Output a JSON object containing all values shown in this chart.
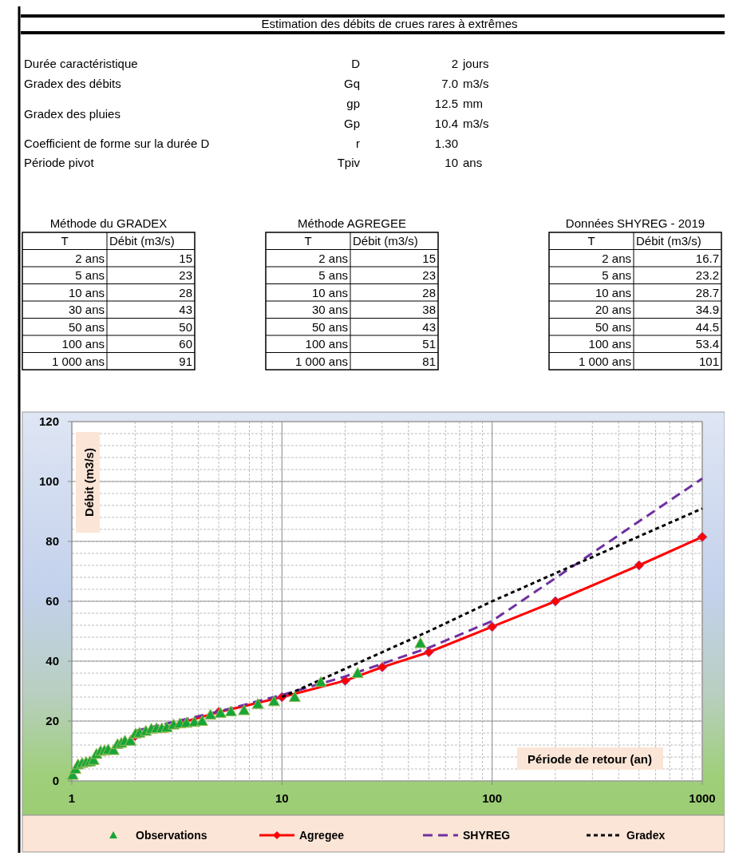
{
  "chart_data": [
    {
      "type": "other",
      "title": "Estimation des débits de crues rares à extrêmes",
      "annotations": [
        "Durée caractéristique",
        "Gradex des débits",
        "Gradex des pluies",
        "Coefficient de forme sur la durée D",
        "Période pivot"
      ],
      "categories": [
        "D",
        "Gq",
        "gp",
        "Gp",
        "r",
        "Tpiv"
      ],
      "values": [
        2,
        7.0,
        12.5,
        10.4,
        1.3,
        10
      ],
      "value_labels": [
        "2 jours",
        "7.0 m3/s",
        "12.5 mm",
        "10.4 m3/s",
        "1.30",
        "10 ans"
      ]
    },
    {
      "type": "other",
      "title": "Méthode du GRADEX",
      "xlabel": "T",
      "ylabel": "Débit (m3/s)",
      "categories": [
        "2 ans",
        "5 ans",
        "10 ans",
        "30 ans",
        "50 ans",
        "100 ans",
        "1 000 ans"
      ],
      "values": [
        15,
        23,
        28,
        43,
        50,
        60,
        91
      ],
      "data_labels": true
    },
    {
      "type": "other",
      "title": "Méthode AGREGEE",
      "xlabel": "T",
      "ylabel": "Débit (m3/s)",
      "categories": [
        "2 ans",
        "5 ans",
        "10 ans",
        "30 ans",
        "50 ans",
        "100 ans",
        "1 000 ans"
      ],
      "values": [
        15,
        23,
        28,
        38,
        43,
        51,
        81
      ],
      "data_labels": true
    },
    {
      "type": "other",
      "title": "Données SHYREG - 2019",
      "xlabel": "T",
      "ylabel": "Débit (m3/s)",
      "categories": [
        "2 ans",
        "5 ans",
        "10 ans",
        "20 ans",
        "50 ans",
        "100 ans",
        "1 000 ans"
      ],
      "values": [
        16.7,
        23.2,
        28.7,
        34.9,
        44.5,
        53.4,
        101
      ],
      "data_labels": true
    },
    {
      "type": "line",
      "xlabel": "Période de retour (an)",
      "ylabel": "Débit (m3/s)",
      "log": "x",
      "xlim": [
        1,
        1000
      ],
      "xticks": [
        1,
        10,
        100,
        1000
      ],
      "ylim": [
        0,
        120
      ],
      "yticks": [
        0,
        20,
        40,
        60,
        80,
        100,
        120
      ],
      "grid": true,
      "legend": "bottom",
      "series": [
        {
          "name": "Observations",
          "type": "scatter",
          "marker": "triangle",
          "color": "#16a637",
          "x": [
            1.01,
            1.04,
            1.07,
            1.12,
            1.17,
            1.22,
            1.27,
            1.31,
            1.37,
            1.43,
            1.49,
            1.58,
            1.65,
            1.72,
            1.79,
            1.9,
            2.01,
            2.1,
            2.25,
            2.39,
            2.53,
            2.68,
            2.83,
            3.05,
            3.27,
            3.51,
            3.83,
            4.17,
            4.57,
            5.1,
            5.72,
            6.6,
            7.68,
            9.17,
            11.5,
            15.3,
            22.9,
            45.6
          ],
          "values": [
            2,
            4,
            5.5,
            6,
            6.3,
            6.5,
            7,
            9,
            10,
            10.2,
            10.5,
            10.3,
            12.3,
            12.7,
            13.4,
            13.4,
            15.8,
            16.1,
            16.7,
            17.4,
            17.6,
            17.6,
            17.9,
            18.8,
            19.2,
            19.4,
            19.7,
            20,
            22.1,
            22.7,
            23.2,
            23.6,
            25.7,
            26.6,
            28,
            33,
            36,
            46
          ]
        },
        {
          "name": "Agregee",
          "type": "line",
          "marker": "diamond",
          "line_style": "solid",
          "color": "#ff0000",
          "x": [
            2,
            5,
            10,
            20,
            30,
            50,
            100,
            200,
            500,
            1000
          ],
          "values": [
            15,
            23,
            28,
            33.5,
            38,
            43,
            51.5,
            60,
            72,
            81.5
          ]
        },
        {
          "name": "SHYREG",
          "type": "line",
          "marker": "none",
          "line_style": "dashed",
          "color": "#7030a0",
          "x": [
            2,
            5,
            10,
            20,
            50,
            100,
            1000
          ],
          "values": [
            16.7,
            23.2,
            28.7,
            34.9,
            44.5,
            53.4,
            101
          ]
        },
        {
          "name": "Gradex",
          "type": "line",
          "marker": "none",
          "line_style": "dotted",
          "color": "#000000",
          "x": [
            10,
            30,
            50,
            100,
            1000
          ],
          "values": [
            28,
            43,
            50,
            60,
            91
          ]
        }
      ]
    }
  ]
}
